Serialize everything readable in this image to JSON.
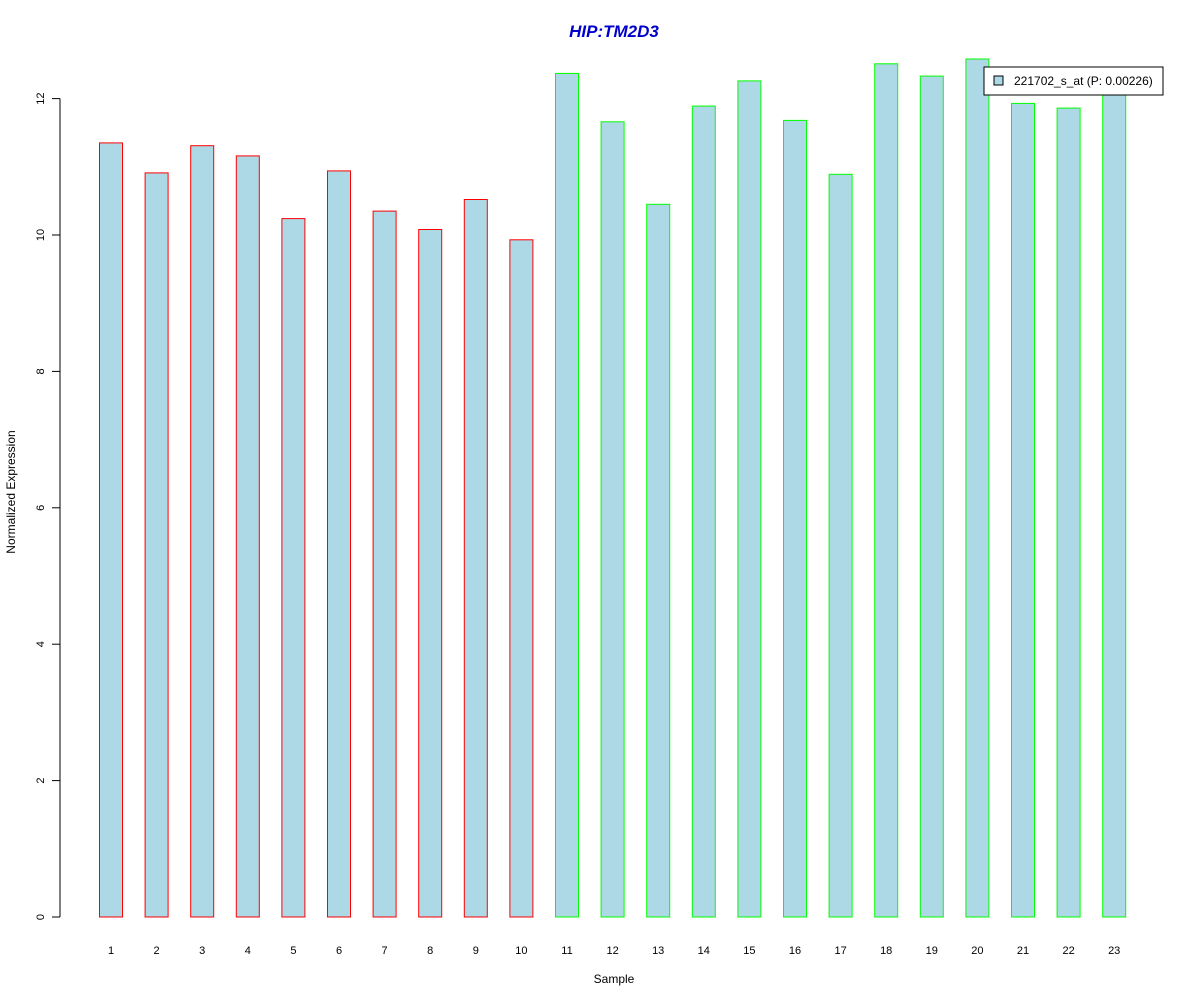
{
  "chart_data": {
    "type": "bar",
    "title": "HIP:TM2D3",
    "xlabel": "Sample",
    "ylabel": "Normalized Expression",
    "categories": [
      "1",
      "2",
      "3",
      "4",
      "5",
      "6",
      "7",
      "8",
      "9",
      "10",
      "11",
      "12",
      "13",
      "14",
      "15",
      "16",
      "17",
      "18",
      "19",
      "20",
      "21",
      "22",
      "23"
    ],
    "series": [
      {
        "name": "221702_s_at (P: 0.00226)",
        "values": [
          11.35,
          10.91,
          11.31,
          11.16,
          10.24,
          10.94,
          10.35,
          10.08,
          10.52,
          9.93,
          12.37,
          11.66,
          10.45,
          11.89,
          12.26,
          11.68,
          10.89,
          12.51,
          12.33,
          12.58,
          11.93,
          11.86,
          12.06
        ]
      }
    ],
    "bar_fill": "#add8e6",
    "bar_border_colors": [
      "#ff0000",
      "#ff0000",
      "#ff0000",
      "#ff0000",
      "#ff0000",
      "#ff0000",
      "#ff0000",
      "#ff0000",
      "#ff0000",
      "#ff0000",
      "#00ff00",
      "#00ff00",
      "#00ff00",
      "#00ff00",
      "#00ff00",
      "#00ff00",
      "#00ff00",
      "#00ff00",
      "#00ff00",
      "#00ff00",
      "#00ff00",
      "#00ff00",
      "#00ff00"
    ],
    "ylim": [
      0,
      12.6
    ],
    "yticks": [
      0,
      2,
      4,
      6,
      8,
      10,
      12
    ],
    "legend_position": "top-right",
    "grid": false
  }
}
